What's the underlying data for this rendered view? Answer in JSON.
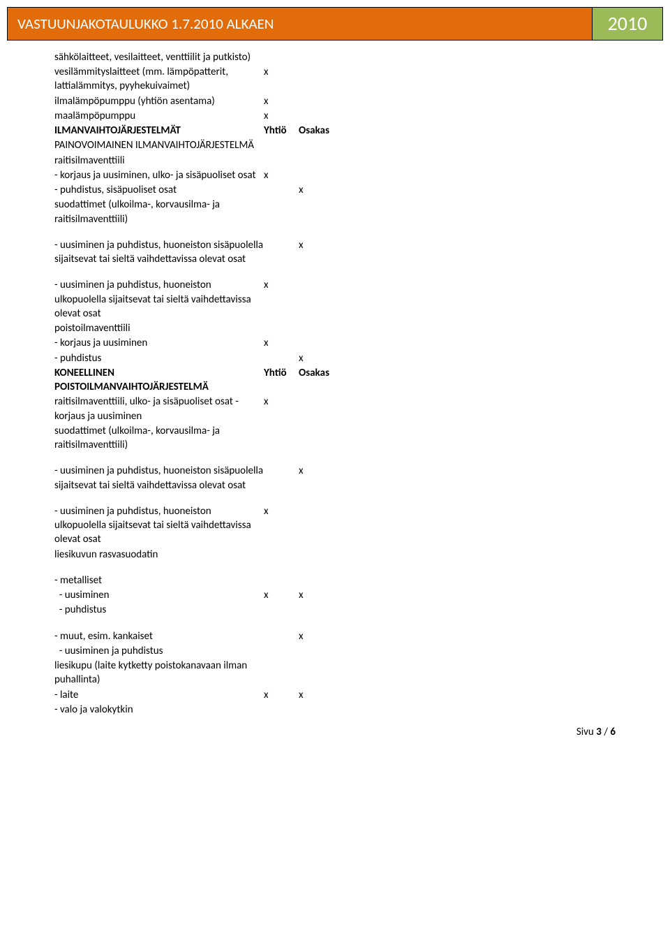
{
  "header": {
    "title": "VASTUUNJAKOTAULUKKO 1.7.2010 ALKAEN",
    "year": "2010"
  },
  "columns": {
    "c1": "Yhtiö",
    "c2": "Osakas",
    "x": "x"
  },
  "rows": [
    {
      "label": "sähkölaitteet, vesilaitteet, venttiilit ja putkisto)",
      "c1": "",
      "c2": ""
    },
    {
      "label": "vesilämmityslaitteet (mm. lämpöpatterit, lattialämmitys, pyyhekuivaimet)",
      "c1": "x",
      "c2": ""
    },
    {
      "label": "ilmalämpöpumppu (yhtiön asentama)",
      "c1": "x",
      "c2": ""
    },
    {
      "label": "maalämpöpumppu",
      "c1": "x",
      "c2": ""
    },
    {
      "label": "ILMANVAIHTOJÄRJESTELMÄT",
      "c1": "Yhtiö",
      "c2": "Osakas",
      "bold": true
    },
    {
      "label": "PAINOVOIMAINEN ILMANVAIHTOJÄRJESTELMÄ",
      "c1": "",
      "c2": ""
    },
    {
      "label": "raitisilmaventtiili",
      "c1": "",
      "c2": ""
    },
    {
      "label": "- korjaus ja uusiminen, ulko- ja sisäpuoliset osat",
      "c1": "x",
      "c2": ""
    },
    {
      "label": "- puhdistus, sisäpuoliset osat",
      "c1": "",
      "c2": "x"
    },
    {
      "label": "suodattimet (ulkoilma-, korvausilma- ja raitisilmaventtiili)",
      "c1": "",
      "c2": ""
    },
    {
      "gap": true
    },
    {
      "label": "- uusiminen ja puhdistus, huoneiston sisäpuolella sijaitsevat tai sieltä vaihdettavissa olevat osat",
      "c1": "",
      "c2": "x"
    },
    {
      "gap": true
    },
    {
      "label": "- uusiminen ja puhdistus, huoneiston ulkopuolella sijaitsevat tai sieltä vaihdettavissa olevat osat",
      "c1": "x",
      "c2": ""
    },
    {
      "label": "poistoilmaventtiili",
      "c1": "",
      "c2": ""
    },
    {
      "label": "- korjaus ja uusiminen",
      "c1": "x",
      "c2": ""
    },
    {
      "label": "- puhdistus",
      "c1": "",
      "c2": "x"
    },
    {
      "label": "KONEELLINEN POISTOILMANVAIHTOJÄRJESTELMÄ",
      "c1": "Yhtiö",
      "c2": "Osakas",
      "bold": true
    },
    {
      "label": "raitisilmaventtiili, ulko- ja sisäpuoliset osat - korjaus ja uusiminen",
      "c1": "x",
      "c2": ""
    },
    {
      "label": "suodattimet (ulkoilma-, korvausilma- ja raitisilmaventtiili)",
      "c1": "",
      "c2": ""
    },
    {
      "gap": true
    },
    {
      "label": "- uusiminen ja puhdistus, huoneiston sisäpuolella sijaitsevat tai sieltä vaihdettavissa olevat osat",
      "c1": "",
      "c2": "x"
    },
    {
      "gap": true
    },
    {
      "label": "- uusiminen ja puhdistus, huoneiston ulkopuolella sijaitsevat tai sieltä vaihdettavissa olevat osat",
      "c1": "x",
      "c2": ""
    },
    {
      "label": "liesikuvun rasvasuodatin",
      "c1": "",
      "c2": ""
    },
    {
      "gap": true
    },
    {
      "label": "- metalliset",
      "c1": "",
      "c2": ""
    },
    {
      "label": "  - uusiminen",
      "c1": "x",
      "c2": "x"
    },
    {
      "label": "  - puhdistus",
      "c1": "",
      "c2": ""
    },
    {
      "gap": true
    },
    {
      "label": "- muut, esim. kankaiset",
      "c1": "",
      "c2": "x"
    },
    {
      "label": "  - uusiminen ja puhdistus",
      "c1": "",
      "c2": ""
    },
    {
      "label": "liesikupu (laite kytketty poistokanavaan ilman puhallinta)",
      "c1": "",
      "c2": ""
    },
    {
      "label": "- laite",
      "c1": "x",
      "c2": "x"
    },
    {
      "label": "- valo ja valokytkin",
      "c1": "",
      "c2": ""
    }
  ],
  "footer": {
    "prefix": "Sivu ",
    "page": "3",
    "sep": " / ",
    "total": "6"
  }
}
